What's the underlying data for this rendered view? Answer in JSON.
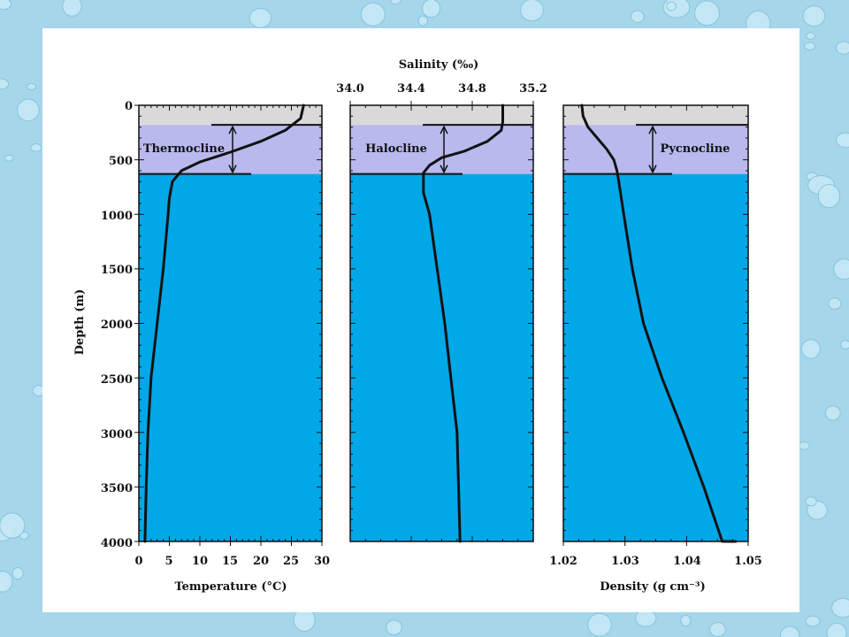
{
  "colors": {
    "background_texture": "#a6d6ea",
    "droplet": "#c9e9f6",
    "panel": "#ffffff",
    "surface_layer": "#d9d9d9",
    "cline_layer": "#b9b9ee",
    "deep_layer": "#00a8e8",
    "curve": "#111111"
  },
  "shared": {
    "ylabel": "Depth (m)",
    "y_ticks": [
      "0",
      "500",
      "1000",
      "1500",
      "2000",
      "2500",
      "3000",
      "3500",
      "4000"
    ]
  },
  "chart_data": [
    {
      "type": "line",
      "title": "",
      "xlabel": "Temperature (°C)",
      "ylabel": "Depth (m)",
      "xlim": [
        0,
        30
      ],
      "ylim": [
        4000,
        0
      ],
      "x_ticks": [
        "0",
        "5",
        "10",
        "15",
        "20",
        "25",
        "30"
      ],
      "layers": [
        {
          "name": "",
          "top": 0,
          "bottom": 180,
          "color": "#d9d9d9"
        },
        {
          "name": "Thermocline",
          "top": 180,
          "bottom": 630,
          "color": "#b9b9ee"
        },
        {
          "name": "",
          "top": 630,
          "bottom": 4000,
          "color": "#00a8e8"
        }
      ],
      "annotation": "Thermocline",
      "series": [
        {
          "name": "",
          "x": [
            27,
            26.5,
            24,
            20,
            15,
            10,
            7,
            5.5,
            5,
            4.8,
            4,
            3,
            2,
            1.5,
            1.2,
            1.0
          ],
          "y": [
            0,
            120,
            230,
            330,
            430,
            520,
            600,
            700,
            850,
            1000,
            1500,
            2000,
            2500,
            3000,
            3500,
            4000
          ]
        }
      ]
    },
    {
      "type": "line",
      "title": "",
      "xlabel": "Salinity (‰)",
      "ylabel": "Depth (m)",
      "xlim": [
        34.0,
        35.2
      ],
      "ylim": [
        4000,
        0
      ],
      "x_ticks": [
        "34.0",
        "34.4",
        "34.8",
        "35.2"
      ],
      "layers": [
        {
          "name": "",
          "top": 0,
          "bottom": 180,
          "color": "#d9d9d9"
        },
        {
          "name": "Halocline",
          "top": 180,
          "bottom": 630,
          "color": "#b9b9ee"
        },
        {
          "name": "",
          "top": 630,
          "bottom": 4000,
          "color": "#00a8e8"
        }
      ],
      "annotation": "Halocline",
      "series": [
        {
          "name": "",
          "x": [
            35.0,
            35.0,
            34.99,
            34.9,
            34.75,
            34.6,
            34.52,
            34.48,
            34.48,
            34.52,
            34.57,
            34.62,
            34.66,
            34.7,
            34.71,
            34.72
          ],
          "y": [
            0,
            150,
            230,
            330,
            420,
            480,
            550,
            620,
            800,
            1000,
            1500,
            2000,
            2500,
            3000,
            3500,
            4000
          ]
        }
      ]
    },
    {
      "type": "line",
      "title": "",
      "xlabel": "Density (g cm⁻³)",
      "ylabel": "Depth (m)",
      "xlim": [
        1.02,
        1.05
      ],
      "ylim": [
        4000,
        0
      ],
      "x_ticks": [
        "1.02",
        "1.03",
        "1.04",
        "1.05"
      ],
      "layers": [
        {
          "name": "",
          "top": 0,
          "bottom": 180,
          "color": "#d9d9d9"
        },
        {
          "name": "Pycnocline",
          "top": 180,
          "bottom": 630,
          "color": "#b9b9ee"
        },
        {
          "name": "",
          "top": 630,
          "bottom": 4000,
          "color": "#00a8e8"
        }
      ],
      "annotation": "Pycnocline",
      "series": [
        {
          "name": "",
          "x": [
            1.023,
            1.0232,
            1.024,
            1.0255,
            1.027,
            1.0282,
            1.0287,
            1.029,
            1.0298,
            1.0312,
            1.033,
            1.036,
            1.0395,
            1.0428,
            1.0458,
            1.048
          ],
          "y": [
            0,
            100,
            200,
            300,
            400,
            500,
            600,
            700,
            1000,
            1500,
            2000,
            2500,
            3000,
            3500,
            4000,
            4000
          ]
        }
      ]
    }
  ]
}
